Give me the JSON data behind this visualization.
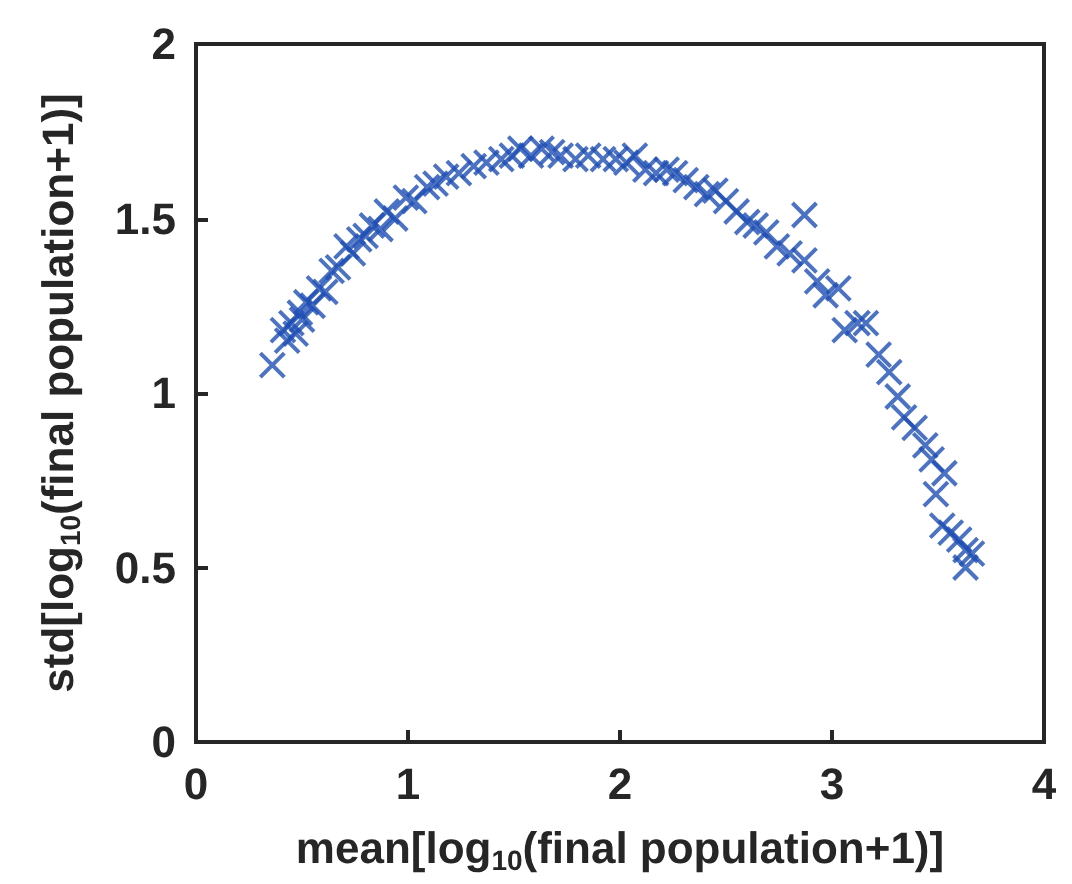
{
  "chart_data": {
    "type": "scatter",
    "xlabel": "mean[log$_{10}$(final population+1)]",
    "ylabel": "std[log$_{10}$(final population+1)]",
    "x": [
      0.36,
      0.41,
      0.43,
      0.45,
      0.47,
      0.49,
      0.5,
      0.52,
      0.55,
      0.58,
      0.61,
      0.64,
      0.67,
      0.71,
      0.74,
      0.77,
      0.8,
      0.83,
      0.87,
      0.9,
      0.94,
      0.99,
      1.03,
      1.09,
      1.13,
      1.18,
      1.24,
      1.31,
      1.37,
      1.44,
      1.49,
      1.53,
      1.58,
      1.63,
      1.68,
      1.72,
      1.79,
      1.85,
      1.92,
      1.98,
      2.03,
      2.07,
      2.12,
      2.17,
      2.22,
      2.26,
      2.31,
      2.36,
      2.41,
      2.45,
      2.5,
      2.55,
      2.6,
      2.64,
      2.69,
      2.74,
      2.8,
      2.87,
      2.87,
      2.93,
      2.97,
      3.03,
      3.06,
      3.12,
      3.16,
      3.22,
      3.27,
      3.31,
      3.34,
      3.39,
      3.44,
      3.47,
      3.49,
      3.53,
      3.52,
      3.56,
      3.6,
      3.63,
      3.66,
      3.63
    ],
    "values": [
      1.08,
      1.18,
      1.15,
      1.2,
      1.17,
      1.23,
      1.21,
      1.26,
      1.25,
      1.3,
      1.29,
      1.35,
      1.36,
      1.42,
      1.4,
      1.44,
      1.45,
      1.48,
      1.47,
      1.52,
      1.5,
      1.56,
      1.55,
      1.59,
      1.6,
      1.62,
      1.63,
      1.65,
      1.66,
      1.67,
      1.68,
      1.7,
      1.68,
      1.7,
      1.69,
      1.68,
      1.67,
      1.68,
      1.67,
      1.67,
      1.66,
      1.68,
      1.64,
      1.63,
      1.64,
      1.63,
      1.61,
      1.59,
      1.57,
      1.58,
      1.55,
      1.52,
      1.49,
      1.48,
      1.46,
      1.42,
      1.4,
      1.38,
      1.51,
      1.32,
      1.28,
      1.3,
      1.18,
      1.2,
      1.2,
      1.11,
      1.06,
      0.99,
      0.93,
      0.9,
      0.85,
      0.81,
      0.71,
      0.77,
      0.62,
      0.6,
      0.58,
      0.55,
      0.54,
      0.5
    ],
    "color": "#1f4fb4",
    "marker": "cross",
    "xlim": [
      0,
      4
    ],
    "xticks": [
      0,
      1,
      2,
      3,
      4
    ],
    "ylim": [
      0,
      2
    ],
    "yticks": [
      0,
      0.5,
      1,
      1.5,
      2
    ]
  }
}
